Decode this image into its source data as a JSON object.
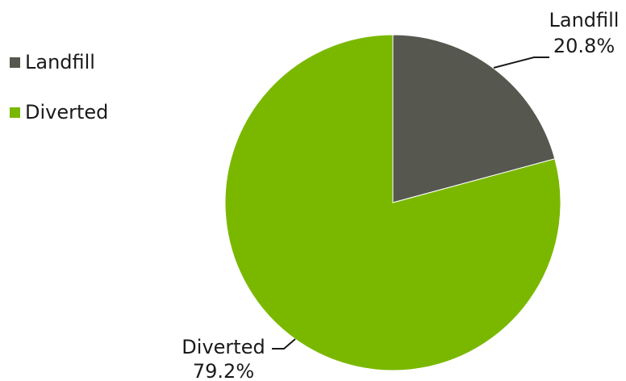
{
  "chart_data": {
    "type": "pie",
    "title": "",
    "categories": [
      "Landfill",
      "Diverted"
    ],
    "values": [
      20.8,
      79.2
    ],
    "unit": "%",
    "colors": [
      "#56574f",
      "#7ab800"
    ],
    "legend": {
      "position": "left",
      "entries": [
        "Landfill",
        "Diverted"
      ]
    },
    "data_labels": [
      {
        "category": "Landfill",
        "value": "20.8%"
      },
      {
        "category": "Diverted",
        "value": "79.2%"
      }
    ]
  }
}
